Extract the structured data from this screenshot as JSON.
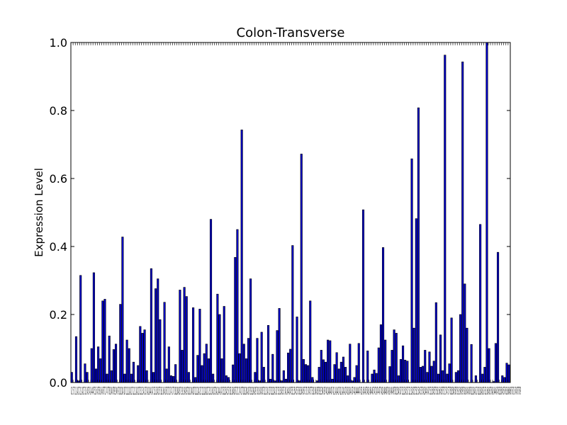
{
  "chart_data": {
    "type": "bar",
    "title": "Colon-Transverse",
    "xlabel": "",
    "ylabel": "Expression Level",
    "ylim": [
      0,
      1.0
    ],
    "yticks": [
      "0.0",
      "0.2",
      "0.4",
      "0.6",
      "0.8",
      "1.0"
    ],
    "xtick_text": "0 2 5 7 11 14 17 21 24 27 31 34 37 41 44 47 51 54 57 61 64 67 71 74 77 81 84 87 91 94 97 101 104 107 111 114 117 121 124 127 131 134 137 141 144 147 151 154 157 161 164 167 171 174 177 181 184 187 191 194 197 201 204 207 211 214 217 221 224 227 231 234 237 241 244 247 251 254 257 261 264 267 271 274 277 281 284 287 291 294 297 301 304 307 311 314 317 321 324 327 331 334 337 341 344 347 351 354 357 361 364 367 371 374 377 381 384 387 391 394 397 401 404 407 411 414 417 421 424 427 431 434 437 441 444 447 451 454 457 461 464 467 471 474 477 481 484 487 491 494 497 501 504 507 511 514 517 521 524 527 531 534 537 541 544 547 551 554 557 561 564 567 571 574 577 581 584 587 591 594 597 601 604 607 611 614 617 621 624 627 631 634 637 641 644 647 651 654 657 661 664 667 671 674 677 679",
    "grid": false,
    "bar_color": "#0000cc",
    "values": [
      0.03,
      0.0,
      0.135,
      0.005,
      0.315,
      0.0,
      0.055,
      0.03,
      0.0,
      0.1,
      0.323,
      0.04,
      0.105,
      0.07,
      0.24,
      0.245,
      0.025,
      0.137,
      0.035,
      0.097,
      0.113,
      0.0,
      0.23,
      0.428,
      0.025,
      0.125,
      0.1,
      0.025,
      0.06,
      0.0,
      0.05,
      0.165,
      0.145,
      0.155,
      0.035,
      0.0,
      0.335,
      0.03,
      0.276,
      0.305,
      0.185,
      0.0,
      0.236,
      0.04,
      0.105,
      0.02,
      0.018,
      0.053,
      0.0,
      0.272,
      0.095,
      0.28,
      0.253,
      0.03,
      0.0,
      0.22,
      0.015,
      0.08,
      0.216,
      0.05,
      0.085,
      0.113,
      0.07,
      0.48,
      0.025,
      0.0,
      0.26,
      0.2,
      0.07,
      0.224,
      0.02,
      0.015,
      0.0,
      0.052,
      0.368,
      0.45,
      0.085,
      0.743,
      0.113,
      0.07,
      0.13,
      0.305,
      0.0,
      0.03,
      0.13,
      0.005,
      0.148,
      0.045,
      0.0,
      0.168,
      0.01,
      0.083,
      0.005,
      0.153,
      0.218,
      0.005,
      0.035,
      0.01,
      0.087,
      0.098,
      0.403,
      0.0,
      0.193,
      0.005,
      0.672,
      0.068,
      0.053,
      0.05,
      0.24,
      0.015,
      0.0,
      0.005,
      0.045,
      0.095,
      0.067,
      0.06,
      0.125,
      0.123,
      0.01,
      0.053,
      0.088,
      0.04,
      0.06,
      0.075,
      0.045,
      0.02,
      0.113,
      0.005,
      0.015,
      0.05,
      0.115,
      0.0,
      0.508,
      0.0,
      0.093,
      0.0,
      0.025,
      0.037,
      0.027,
      0.102,
      0.17,
      0.397,
      0.125,
      0.0,
      0.047,
      0.095,
      0.155,
      0.145,
      0.02,
      0.068,
      0.108,
      0.066,
      0.063,
      0.0,
      0.658,
      0.16,
      0.482,
      0.808,
      0.045,
      0.048,
      0.095,
      0.03,
      0.09,
      0.048,
      0.063,
      0.235,
      0.025,
      0.14,
      0.035,
      0.963,
      0.025,
      0.055,
      0.19,
      0.0,
      0.03,
      0.035,
      0.2,
      0.943,
      0.29,
      0.16,
      0.0,
      0.112,
      0.0,
      0.02,
      0.0,
      0.465,
      0.025,
      0.045,
      1.0,
      0.1,
      0.0,
      0.003,
      0.115,
      0.383,
      0.0,
      0.02,
      0.015,
      0.057,
      0.052
    ]
  }
}
